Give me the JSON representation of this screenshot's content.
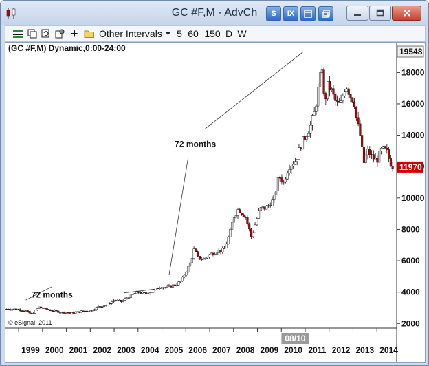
{
  "window": {
    "title": "GC #F,M - AdvCh"
  },
  "title_tools": [
    {
      "label": "S",
      "name": "s-tool-button"
    },
    {
      "label": "IX",
      "name": "ix-tool-button"
    },
    {
      "label": "",
      "name": "window-tile-button"
    },
    {
      "label": "",
      "name": "window-link-button"
    }
  ],
  "toolbar": {
    "intervals_label": "Other Intervals",
    "quick_intervals": [
      "5",
      "60",
      "150",
      "D",
      "W"
    ]
  },
  "chart_header": "(GC #F,M) Dynamic,0:00-24:00",
  "price_labels": {
    "high": "19548",
    "last": "11970"
  },
  "colors": {
    "up": "#ffffff",
    "down": "#c00000",
    "last_price_bg": "#cc0000",
    "accent": "#2c66c2"
  },
  "chart_data": {
    "type": "candlestick",
    "ylim": [
      1750,
      19900
    ],
    "yticks": [
      2000,
      4000,
      6000,
      8000,
      10000,
      12000,
      14000,
      16000,
      18000
    ],
    "xlim": [
      1998.45,
      2014.8
    ],
    "xticks": [
      "1999",
      "2000",
      "2001",
      "2002",
      "2003",
      "2004",
      "2005",
      "2006",
      "2007",
      "2008",
      "2009",
      "2010",
      "2011",
      "2012",
      "2013",
      "2014"
    ],
    "cursor_label": "08/10",
    "cursor_x": 2010.58,
    "annotations": [
      {
        "text": "72 months",
        "x": 2000.4,
        "y": 3650
      },
      {
        "text": "72 months",
        "x": 2006.4,
        "y": 13250
      }
    ],
    "trendlines": [
      {
        "from": [
          1999.3,
          3500
        ],
        "to": [
          2000.4,
          4350
        ]
      },
      {
        "from": [
          2003.4,
          3950
        ],
        "to": [
          2005.25,
          4300
        ]
      },
      {
        "from": [
          2005.3,
          5100
        ],
        "to": [
          2006.1,
          12600
        ]
      },
      {
        "from": [
          2006.8,
          14400
        ],
        "to": [
          2010.9,
          19300
        ]
      }
    ],
    "close_points": [
      [
        1998.5,
        2920
      ],
      [
        1998.9,
        2920
      ],
      [
        1999.3,
        2800
      ],
      [
        1999.55,
        2580
      ],
      [
        1999.75,
        2900
      ],
      [
        1999.85,
        3050
      ],
      [
        2000.3,
        2850
      ],
      [
        2000.8,
        2720
      ],
      [
        2001.3,
        2680
      ],
      [
        2001.7,
        2800
      ],
      [
        2002.0,
        2800
      ],
      [
        2002.3,
        3050
      ],
      [
        2002.7,
        3200
      ],
      [
        2003.0,
        3500
      ],
      [
        2003.3,
        3400
      ],
      [
        2003.7,
        3800
      ],
      [
        2004.0,
        4000
      ],
      [
        2004.3,
        3900
      ],
      [
        2004.6,
        4050
      ],
      [
        2004.9,
        4350
      ],
      [
        2005.2,
        4300
      ],
      [
        2005.6,
        4500
      ],
      [
        2005.8,
        4700
      ],
      [
        2006.0,
        5300
      ],
      [
        2006.2,
        5900
      ],
      [
        2006.35,
        6750
      ],
      [
        2006.5,
        6200
      ],
      [
        2006.75,
        6100
      ],
      [
        2007.0,
        6400
      ],
      [
        2007.3,
        6600
      ],
      [
        2007.6,
        6700
      ],
      [
        2007.85,
        7800
      ],
      [
        2008.0,
        8800
      ],
      [
        2008.2,
        9300
      ],
      [
        2008.5,
        8800
      ],
      [
        2008.75,
        7500
      ],
      [
        2008.9,
        8300
      ],
      [
        2009.1,
        9300
      ],
      [
        2009.4,
        9400
      ],
      [
        2009.7,
        10000
      ],
      [
        2009.9,
        11400
      ],
      [
        2010.1,
        11000
      ],
      [
        2010.3,
        12000
      ],
      [
        2010.6,
        12400
      ],
      [
        2010.85,
        13500
      ],
      [
        2011.05,
        14100
      ],
      [
        2011.2,
        14500
      ],
      [
        2011.4,
        15500
      ],
      [
        2011.55,
        17000
      ],
      [
        2011.7,
        18400
      ],
      [
        2011.8,
        16000
      ],
      [
        2011.95,
        17200
      ],
      [
        2012.1,
        16800
      ],
      [
        2012.3,
        16000
      ],
      [
        2012.5,
        16000
      ],
      [
        2012.7,
        17300
      ],
      [
        2012.9,
        16500
      ],
      [
        2013.05,
        16200
      ],
      [
        2013.15,
        15000
      ],
      [
        2013.3,
        14000
      ],
      [
        2013.45,
        12200
      ],
      [
        2013.6,
        13000
      ],
      [
        2013.8,
        12600
      ],
      [
        2014.0,
        12400
      ],
      [
        2014.2,
        13100
      ],
      [
        2014.4,
        13000
      ],
      [
        2014.55,
        12300
      ],
      [
        2014.7,
        11970
      ]
    ]
  },
  "footer": {
    "copyright": "© eSignal, 2011"
  }
}
